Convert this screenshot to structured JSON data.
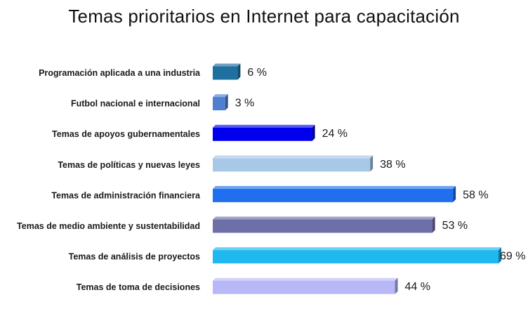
{
  "chart_data": {
    "type": "bar",
    "orientation": "horizontal",
    "title": "Temas prioritarios en Internet para capacitación",
    "xlabel": "",
    "ylabel": "",
    "unit": "%",
    "xlim": [
      0,
      69
    ],
    "grid": false,
    "legend": "none",
    "categories": [
      "Programación aplicada a una industria",
      "Futbol nacional e internacional",
      "Temas de apoyos gubernamentales",
      "Temas de políticas y nuevas leyes",
      "Temas de administración financiera",
      "Temas de medio ambiente y sustentabilidad",
      "Temas de análisis de proyectos",
      "Temas de toma de decisiones"
    ],
    "values": [
      6,
      3,
      24,
      38,
      58,
      53,
      69,
      44
    ],
    "value_labels": [
      "6 %",
      "3 %",
      "24 %",
      "38 %",
      "58 %",
      "53 %",
      "69 %",
      "44 %"
    ],
    "colors": [
      "#1F6F9F",
      "#4F7FCF",
      "#0000EE",
      "#A8C8E8",
      "#1F6FEF",
      "#6F6FA8",
      "#1FB8EF",
      "#B8B8F8"
    ]
  }
}
